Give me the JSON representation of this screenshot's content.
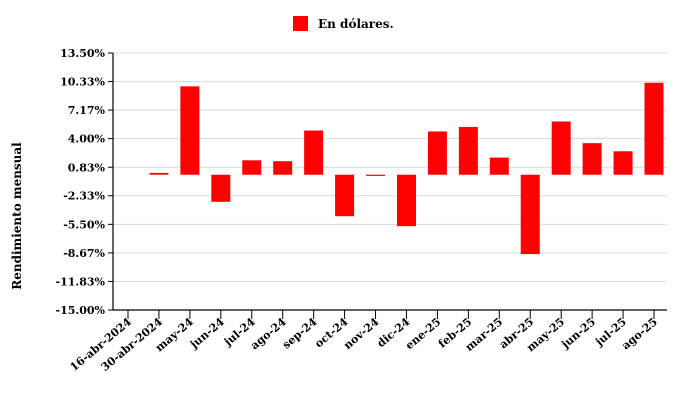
{
  "chart_data": {
    "type": "bar",
    "title": "",
    "xlabel": "",
    "ylabel": "Rendimiento mensual",
    "legend": {
      "position": "top-center",
      "entries": [
        "En dólares."
      ]
    },
    "categories": [
      "16-abr-2024",
      "30-abr-2024",
      "may-24",
      "jun-24",
      "jul-24",
      "ago-24",
      "sep-24",
      "oct-24",
      "nov-24",
      "dic-24",
      "ene-25",
      "feb-25",
      "mar-25",
      "abr-25",
      "may-25",
      "jun-25",
      "jul-25",
      "ago-25"
    ],
    "series": [
      {
        "name": "En dólares.",
        "color": "#ff0000",
        "values": [
          null,
          0.2,
          9.8,
          -3.0,
          1.6,
          1.5,
          4.9,
          -4.6,
          -0.1,
          -5.7,
          4.8,
          5.3,
          1.9,
          -8.8,
          5.9,
          3.5,
          2.6,
          10.2
        ]
      }
    ],
    "yticks": [
      13.5,
      10.33,
      7.17,
      4.0,
      0.83,
      -2.33,
      -5.5,
      -8.67,
      -11.83,
      -15.0
    ],
    "ytick_labels": [
      "13.50%",
      "10.33%",
      "7.17%",
      "4.00%",
      "0.83%",
      "-2.33%",
      "-5.50%",
      "-8.67%",
      "-11.83%",
      "-15.00%"
    ],
    "ylim": [
      -15.0,
      13.5
    ],
    "grid": "horizontal"
  }
}
